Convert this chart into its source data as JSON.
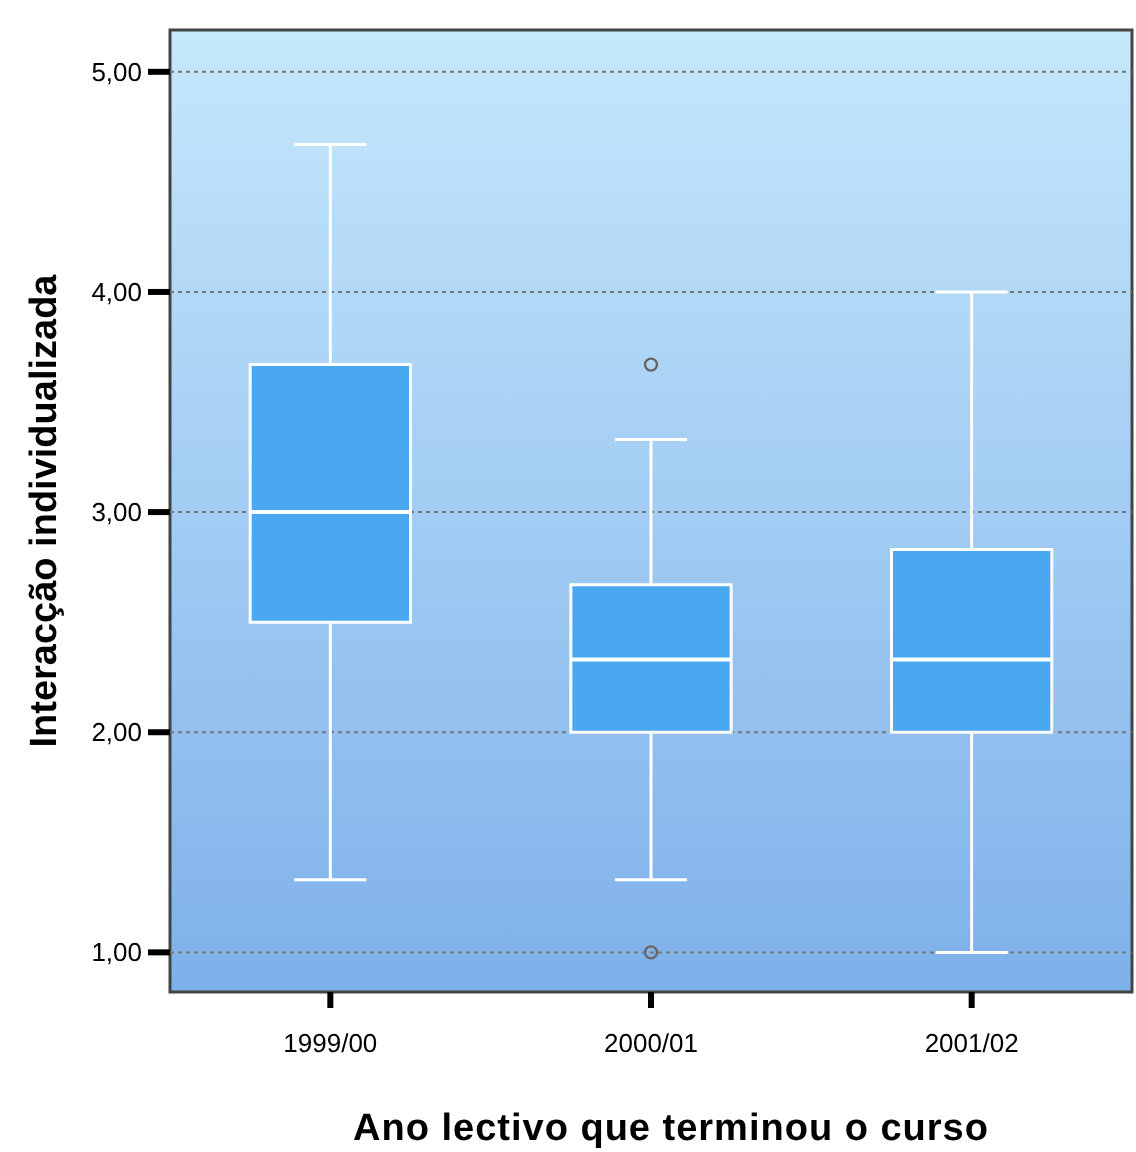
{
  "chart_data": {
    "type": "box",
    "xlabel": "Ano lectivo que terminou o curso",
    "ylabel": "Interacção individualizada",
    "categories": [
      "1999/00",
      "2000/01",
      "2001/02"
    ],
    "color": "#4aa8f0",
    "boxes": [
      {
        "low": 1.33,
        "q1": 2.5,
        "median": 3.0,
        "q3": 3.67,
        "high": 4.67
      },
      {
        "low": 1.33,
        "q1": 2.0,
        "median": 2.33,
        "q3": 2.67,
        "high": 3.33,
        "outliers": [
          3.67,
          1.0
        ]
      },
      {
        "low": 1.0,
        "q1": 2.0,
        "median": 2.33,
        "q3": 2.83,
        "high": 4.0
      }
    ],
    "ylim": [
      0.82,
      5.19
    ],
    "yticks": [
      {
        "value": 1,
        "label": "1,00"
      },
      {
        "value": 2,
        "label": "2,00"
      },
      {
        "value": 3,
        "label": "3,00"
      },
      {
        "value": 4,
        "label": "4,00"
      },
      {
        "value": 5,
        "label": "5,00"
      }
    ],
    "grid": "y"
  }
}
